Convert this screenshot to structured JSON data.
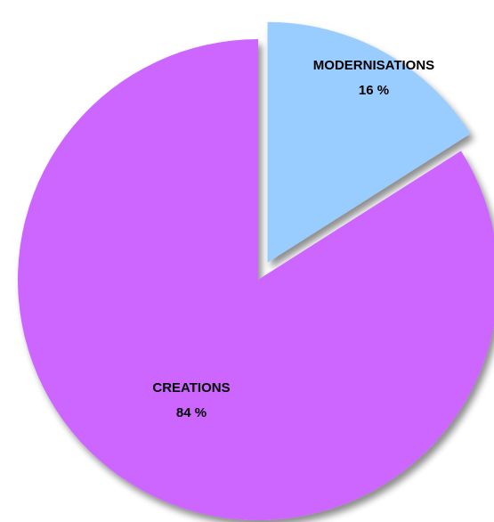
{
  "chart_data": {
    "type": "pie",
    "title": "",
    "slices": [
      {
        "label": "CREATIONS",
        "value": 84,
        "value_text": "84 %",
        "color": "#CC66FF",
        "exploded": false
      },
      {
        "label": "MODERNISATIONS",
        "value": 16,
        "value_text": "16 %",
        "color": "#99CCFF",
        "exploded": true
      }
    ],
    "start_angle_deg": 0,
    "direction": "clockwise",
    "legend": "none",
    "shadow": true
  }
}
